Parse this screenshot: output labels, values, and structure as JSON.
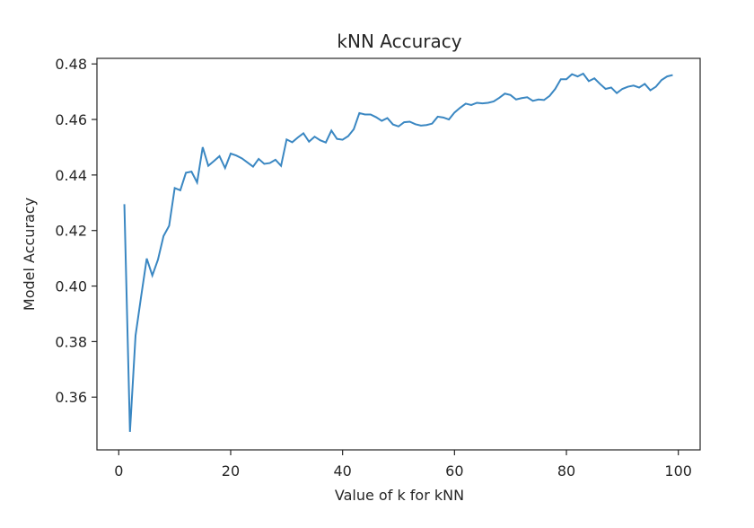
{
  "chart_data": {
    "type": "line",
    "title": "kNN Accuracy",
    "xlabel": "Value of k for kNN",
    "ylabel": "Model Accuracy",
    "xlim": [
      -3.9,
      103.9
    ],
    "ylim": [
      0.341,
      0.482
    ],
    "xticks": [
      0,
      20,
      40,
      60,
      80,
      100
    ],
    "yticks": [
      0.36,
      0.38,
      0.4,
      0.42,
      0.44,
      0.46,
      0.48
    ],
    "ytick_labels": [
      "0.36",
      "0.38",
      "0.40",
      "0.42",
      "0.44",
      "0.46",
      "0.48"
    ],
    "grid": false,
    "legend": "none",
    "line_color": "#3a87c2",
    "series": [
      {
        "x": [
          1,
          2,
          3,
          4,
          5,
          6,
          7,
          8,
          9,
          10,
          11,
          12,
          13,
          14,
          15,
          16,
          17,
          18,
          19,
          20,
          21,
          22,
          23,
          24,
          25,
          26,
          27,
          28,
          29,
          30,
          31,
          32,
          33,
          34,
          35,
          36,
          37,
          38,
          39,
          40,
          41,
          42,
          43,
          44,
          45,
          46,
          47,
          48,
          49,
          50,
          51,
          52,
          53,
          54,
          55,
          56,
          57,
          58,
          59,
          60,
          61,
          62,
          63,
          64,
          65,
          66,
          67,
          68,
          69,
          70,
          71,
          72,
          73,
          74,
          75,
          76,
          77,
          78,
          79,
          80,
          81,
          82,
          83,
          84,
          85,
          86,
          87,
          88,
          89,
          90,
          91,
          92,
          93,
          94,
          95,
          96,
          97,
          98,
          99
        ],
        "values": [
          0.4295,
          0.3475,
          0.3822,
          0.3963,
          0.4099,
          0.4038,
          0.4095,
          0.418,
          0.4217,
          0.4353,
          0.4345,
          0.4408,
          0.4412,
          0.4373,
          0.45,
          0.4433,
          0.445,
          0.4468,
          0.4425,
          0.4477,
          0.447,
          0.446,
          0.4445,
          0.443,
          0.4458,
          0.444,
          0.4443,
          0.4455,
          0.4433,
          0.4528,
          0.4518,
          0.4535,
          0.455,
          0.452,
          0.4538,
          0.4525,
          0.4517,
          0.456,
          0.453,
          0.4527,
          0.454,
          0.4565,
          0.4623,
          0.4618,
          0.4618,
          0.4608,
          0.4595,
          0.4605,
          0.4582,
          0.4575,
          0.459,
          0.4592,
          0.4583,
          0.4578,
          0.458,
          0.4585,
          0.461,
          0.4607,
          0.46,
          0.4625,
          0.4642,
          0.4657,
          0.4652,
          0.466,
          0.4658,
          0.466,
          0.4665,
          0.4678,
          0.4693,
          0.4688,
          0.4672,
          0.4677,
          0.468,
          0.4667,
          0.4672,
          0.467,
          0.4685,
          0.471,
          0.4745,
          0.4745,
          0.4763,
          0.4755,
          0.4765,
          0.4738,
          0.4748,
          0.4728,
          0.471,
          0.4715,
          0.4695,
          0.471,
          0.4718,
          0.4722,
          0.4715,
          0.4728,
          0.4705,
          0.4718,
          0.4742,
          0.4755,
          0.476
        ]
      }
    ]
  }
}
